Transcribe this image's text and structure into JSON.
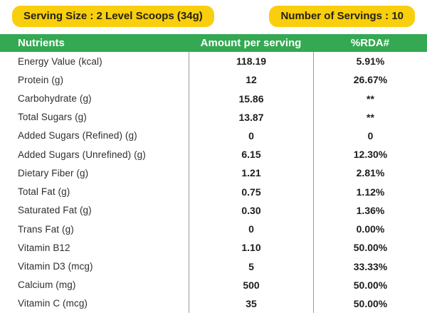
{
  "serving_info": {
    "serving_size_label": "Serving Size : 2 Level Scoops (34g)",
    "servings_label": "Number of Servings : 10"
  },
  "colors": {
    "badge_yellow": "#F9CE0D",
    "header_green": "#35A853",
    "divider_gray": "#9B9B9B",
    "text_dark": "#1D1D1B"
  },
  "table": {
    "headers": {
      "nutrients": "Nutrients",
      "amount": "Amount per serving",
      "rda": "%RDA#"
    },
    "rows": [
      {
        "nutrient": "Energy Value (kcal)",
        "amount": "118.19",
        "rda": "5.91%"
      },
      {
        "nutrient": "Protein (g)",
        "amount": "12",
        "rda": "26.67%"
      },
      {
        "nutrient": "Carbohydrate (g)",
        "amount": "15.86",
        "rda": "**"
      },
      {
        "nutrient": "Total Sugars (g)",
        "amount": "13.87",
        "rda": "**"
      },
      {
        "nutrient": "Added Sugars (Refined) (g)",
        "amount": "0",
        "rda": "0"
      },
      {
        "nutrient": "Added Sugars (Unrefined) (g)",
        "amount": "6.15",
        "rda": "12.30%"
      },
      {
        "nutrient": "Dietary Fiber (g)",
        "amount": "1.21",
        "rda": "2.81%"
      },
      {
        "nutrient": "Total Fat (g)",
        "amount": "0.75",
        "rda": "1.12%"
      },
      {
        "nutrient": "Saturated Fat (g)",
        "amount": "0.30",
        "rda": "1.36%"
      },
      {
        "nutrient": "Trans Fat (g)",
        "amount": "0",
        "rda": "0.00%"
      },
      {
        "nutrient": "Vitamin B12",
        "amount": "1.10",
        "rda": "50.00%"
      },
      {
        "nutrient": "Vitamin D3 (mcg)",
        "amount": "5",
        "rda": "33.33%"
      },
      {
        "nutrient": "Calcium (mg)",
        "amount": "500",
        "rda": "50.00%"
      },
      {
        "nutrient": "Vitamin C (mcg)",
        "amount": "35",
        "rda": "50.00%"
      }
    ]
  }
}
